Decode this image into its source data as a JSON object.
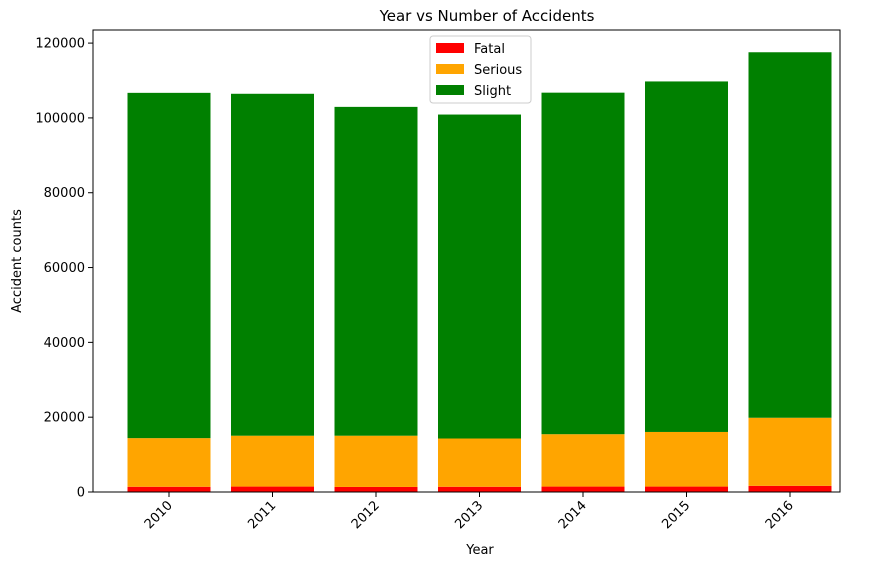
{
  "chart_data": {
    "type": "bar",
    "stacked": true,
    "title": "Year vs Number of Accidents",
    "xlabel": "Year",
    "ylabel": "Accident counts",
    "categories": [
      "2010",
      "2011",
      "2012",
      "2013",
      "2014",
      "2015",
      "2016"
    ],
    "ylim": [
      0,
      123500
    ],
    "yticks": [
      0,
      20000,
      40000,
      60000,
      80000,
      100000,
      120000
    ],
    "yticklabels": [
      "0",
      "20000",
      "40000",
      "60000",
      "80000",
      "100000",
      "120000"
    ],
    "grid": false,
    "legend_position": "top-center",
    "series": [
      {
        "name": "Fatal",
        "color": "#ff0000",
        "values": [
          1400,
          1450,
          1350,
          1400,
          1450,
          1450,
          1650
        ]
      },
      {
        "name": "Serious",
        "color": "#ffa500",
        "values": [
          13000,
          13600,
          13700,
          12900,
          14000,
          14600,
          18200
        ]
      },
      {
        "name": "Slight",
        "color": "#008000",
        "values": [
          92300,
          91400,
          87900,
          86600,
          91300,
          93700,
          97700
        ]
      }
    ]
  }
}
